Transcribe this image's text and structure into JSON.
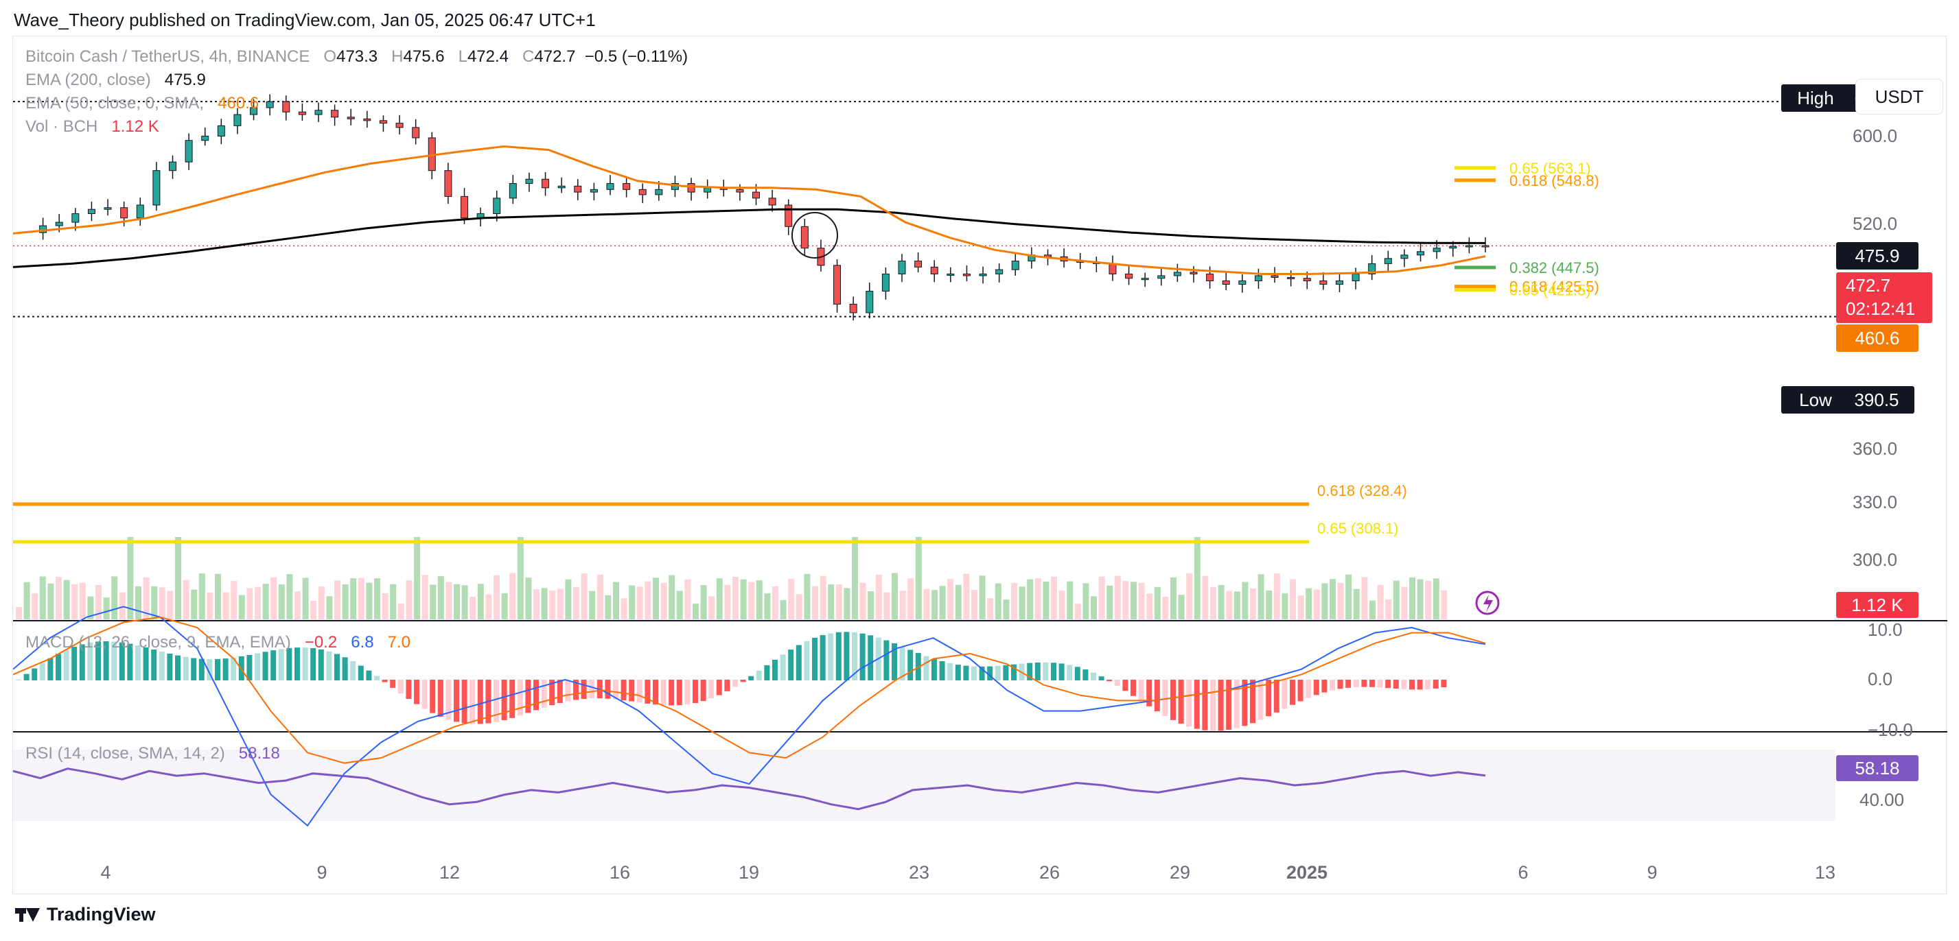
{
  "publisher_line": "Wave_Theory published on TradingView.com, Jan 05, 2025 06:47 UTC+1",
  "currency": "USDT",
  "footer_brand": "TradingView",
  "legend": {
    "symbol": "Bitcoin Cash / TetherUS, 4h, BINANCE",
    "o_label": "O",
    "o": "473.3",
    "h_label": "H",
    "h": "475.6",
    "l_label": "L",
    "l": "472.4",
    "c_label": "C",
    "c": "472.7",
    "change": "−0.5 (−0.11%)",
    "ema200_label": "EMA (200, close)",
    "ema200": "475.9",
    "ema50_label": "EMA (50, close, 0, SMA,",
    "ema50": "460.6",
    "vol_label": "Vol · BCH",
    "vol": "1.12 K",
    "macd_label": "MACD (12, 26, close, 9, EMA, EMA)",
    "macd_hist": "−0.2",
    "macd": "6.8",
    "macd_signal": "7.0",
    "rsi_label": "RSI (14, close, SMA, 14, 2)",
    "rsi": "58.18"
  },
  "colors": {
    "up": "#26a69a",
    "down": "#ef5350",
    "ema50": "#f57c00",
    "ema200": "#000000",
    "fib_orange": "#ff9800",
    "fib_yellow": "#f5e100",
    "fib_green": "#4caf50",
    "macd": "#2962ff",
    "signal": "#ff6d00",
    "rsi": "#7e57c2",
    "price_tag": "#f23645"
  },
  "chart_data": [
    {
      "type": "candlestick",
      "title": "Bitcoin Cash / TetherUS, 4h, BINANCE",
      "x_ticks": [
        "4",
        "9",
        "12",
        "16",
        "19",
        "23",
        "26",
        "29",
        "2025",
        "6",
        "9",
        "13"
      ],
      "y_ticks": [
        "600.0",
        "520.0",
        "360.0",
        "330.0",
        "300.0"
      ],
      "ylim": [
        278,
        668
      ],
      "series_close": [
        488,
        496,
        500,
        510,
        515,
        517,
        505,
        520,
        560,
        570,
        595,
        600,
        612,
        625,
        633,
        640,
        628,
        625,
        630,
        622,
        620,
        618,
        615,
        610,
        598,
        560,
        530,
        505,
        510,
        528,
        545,
        550,
        540,
        542,
        535,
        538,
        545,
        538,
        532,
        538,
        545,
        535,
        540,
        538,
        535,
        528,
        520,
        495,
        470,
        450,
        405,
        395,
        420,
        440,
        455,
        448,
        440,
        440,
        438,
        440,
        445,
        455,
        462,
        460,
        455,
        454,
        452,
        440,
        435,
        435,
        438,
        442,
        440,
        432,
        428,
        432,
        438,
        436,
        435,
        432,
        428,
        432,
        440,
        452,
        458,
        462,
        466,
        470,
        472,
        473,
        472.7
      ],
      "ema50": [
        487,
        492,
        497,
        505,
        518,
        532,
        545,
        558,
        568,
        575,
        582,
        588,
        584,
        565,
        548,
        542,
        540,
        540,
        538,
        530,
        500,
        482,
        468,
        460,
        455,
        450,
        446,
        443,
        440,
        440,
        441,
        443,
        450,
        460.6
      ],
      "ema200": [
        448,
        452,
        458,
        466,
        475,
        484,
        493,
        500,
        505,
        507,
        509,
        511,
        513,
        515,
        515,
        511,
        504,
        498,
        493,
        488,
        484,
        481,
        479,
        477,
        476,
        475.9
      ],
      "highest": {
        "label": "High",
        "value": "640.0"
      },
      "lowest": {
        "label": "Low",
        "value": "390.5"
      },
      "price_labels": {
        "ema200": "475.9",
        "last": "472.7",
        "countdown": "02:12:41",
        "ema50": "460.6",
        "volume": "1.12 K"
      },
      "fib_levels": [
        {
          "label": "0.65 (563.1)",
          "value": 563.1,
          "color": "#f5e100"
        },
        {
          "label": "0.618 (548.8)",
          "value": 548.8,
          "color": "#ff9800"
        },
        {
          "label": "0.382 (447.5)",
          "value": 447.5,
          "color": "#4caf50"
        },
        {
          "label": "0.618 (425.5)",
          "value": 425.5,
          "color": "#ff9800"
        },
        {
          "label": "0.65 (421.5)",
          "value": 421.5,
          "color": "#f5e100"
        },
        {
          "label": "0.618 (328.4)",
          "value": 328.4,
          "color": "#ff9800"
        },
        {
          "label": "0.65 (308.1)",
          "value": 308.1,
          "color": "#f5e100"
        }
      ]
    },
    {
      "type": "line",
      "title": "MACD (12, 26, close, 9, EMA, EMA)",
      "y_ticks": [
        "10.0",
        "0.0",
        "−10.0"
      ],
      "macd": [
        2,
        8,
        12,
        14,
        12,
        6,
        -8,
        -22,
        -28,
        -18,
        -12,
        -8,
        -6,
        -4,
        -2,
        0,
        -2,
        -6,
        -12,
        -18,
        -20,
        -12,
        -4,
        2,
        6,
        8,
        4,
        -2,
        -6,
        -6,
        -5,
        -4,
        -3,
        -2,
        0,
        2,
        6,
        9,
        10,
        8,
        6.8
      ],
      "signal": [
        1,
        4,
        8,
        11,
        12,
        10,
        4,
        -6,
        -14,
        -16,
        -15,
        -12,
        -9,
        -7,
        -5,
        -3,
        -2,
        -3,
        -6,
        -10,
        -14,
        -15,
        -11,
        -5,
        0,
        4,
        5,
        3,
        -1,
        -3,
        -4,
        -4,
        -3,
        -2,
        -1,
        1,
        4,
        7,
        9,
        9,
        7.0
      ]
    },
    {
      "type": "line",
      "title": "RSI (14, close, SMA, 14, 2)",
      "y_ticks": [
        "40.00"
      ],
      "ylim": [
        20,
        80
      ],
      "values": [
        62,
        56,
        64,
        60,
        55,
        62,
        58,
        60,
        56,
        52,
        54,
        60,
        58,
        56,
        48,
        40,
        34,
        36,
        42,
        46,
        44,
        48,
        52,
        48,
        44,
        46,
        50,
        48,
        44,
        40,
        34,
        30,
        36,
        46,
        48,
        50,
        46,
        44,
        48,
        52,
        50,
        46,
        44,
        48,
        52,
        56,
        54,
        50,
        52,
        56,
        60,
        62,
        58,
        61,
        58.18
      ]
    }
  ]
}
